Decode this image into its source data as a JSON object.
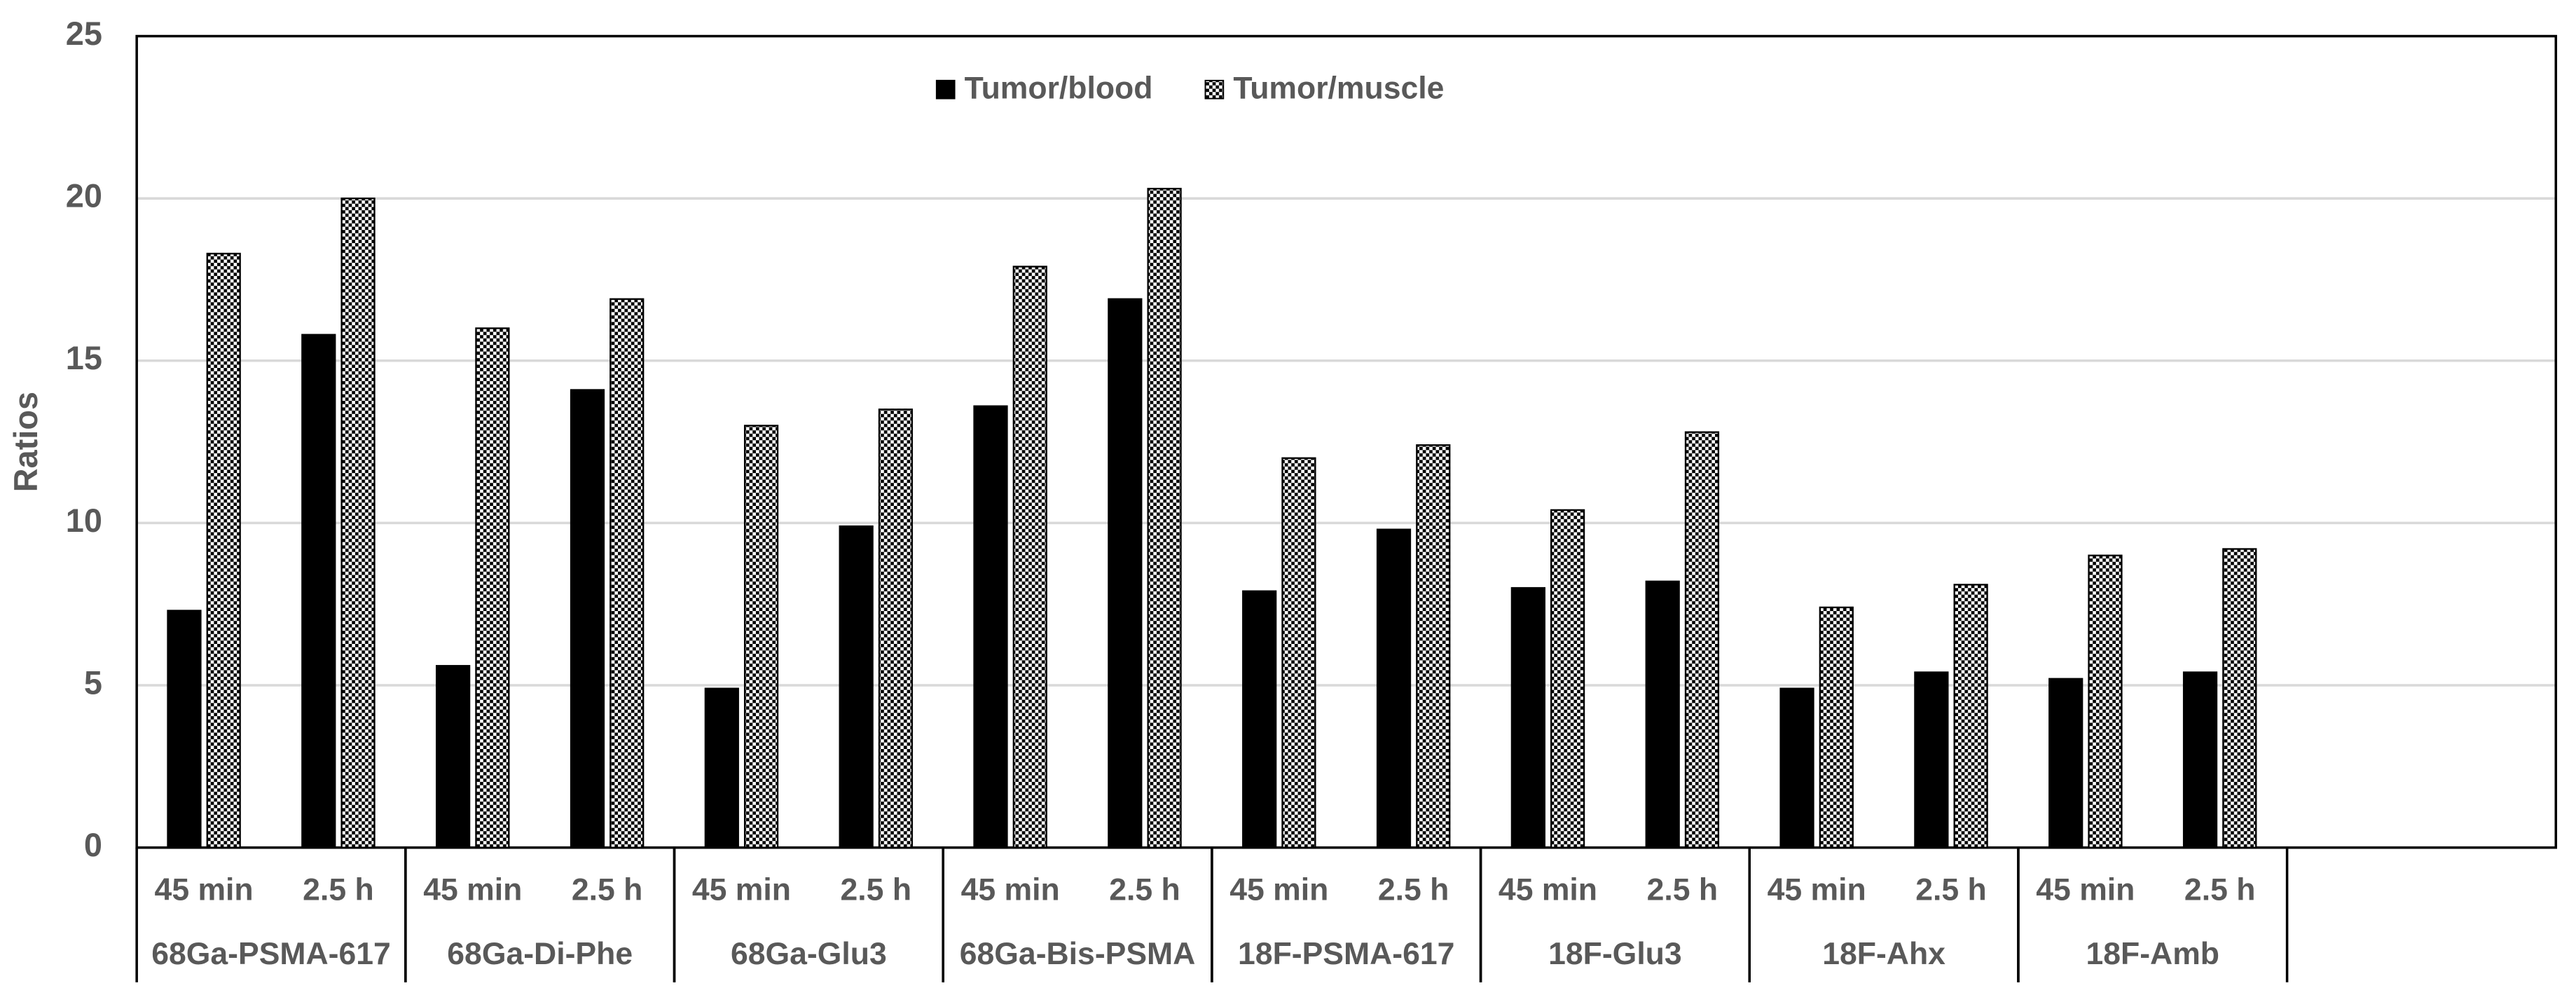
{
  "chart_data": {
    "type": "bar",
    "y_label": "Ratios",
    "groups": [
      "68Ga-PSMA-617",
      "68Ga-Di-Phe",
      "68Ga-Glu3",
      "68Ga-Bis-PSMA",
      "18F-PSMA-617",
      "18F-Glu3",
      "18F-Ahx",
      "18F-Amb",
      null
    ],
    "categories": [
      "45 min",
      "2.5 h",
      "45 min",
      "2.5 h",
      "45 min",
      "2.5 h",
      "45 min",
      "2.5 h",
      "45 min",
      "2.5 h",
      "45 min",
      "2.5 h",
      "45 min",
      "2.5 h",
      "45 min",
      "2.5 h",
      null,
      null
    ],
    "series": [
      {
        "name": "Tumor/blood",
        "color": "#000000",
        "pattern": "solid",
        "values": [
          7.3,
          15.8,
          5.6,
          14.1,
          4.9,
          9.9,
          13.6,
          16.9,
          7.9,
          9.8,
          8.0,
          8.2,
          4.9,
          5.4,
          5.2,
          5.4,
          null,
          null
        ]
      },
      {
        "name": "Tumor/muscle",
        "color": "#000000",
        "pattern": "checker",
        "values": [
          18.3,
          20.0,
          16.0,
          16.9,
          13.0,
          13.5,
          17.9,
          20.3,
          12.0,
          12.4,
          10.4,
          12.8,
          7.4,
          8.1,
          9.0,
          9.2,
          null,
          null
        ]
      }
    ],
    "ylim": [
      0,
      25
    ],
    "yticks": [
      0,
      5,
      10,
      15,
      20,
      25
    ],
    "grid": true,
    "legend": "top"
  }
}
